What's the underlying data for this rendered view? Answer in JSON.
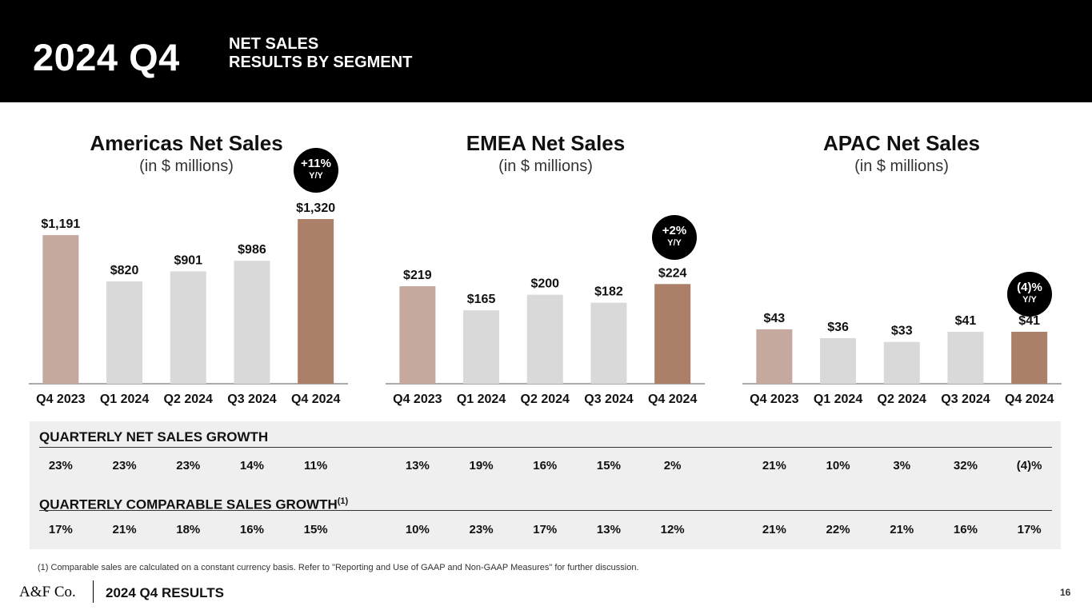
{
  "header": {
    "period": "2024 Q4",
    "subtitle_line1": "NET SALES",
    "subtitle_line2": "RESULTS BY SEGMENT"
  },
  "colors": {
    "q4_2023_bar": "#c5a89e",
    "mid_bar": "#d9d9d9",
    "q4_2024_bar": "#ab7f68",
    "header_bg": "#000000",
    "table_bg": "#efefef"
  },
  "chart_data": [
    {
      "type": "bar",
      "title": "Americas Net Sales",
      "subtitle": "(in $ millions)",
      "categories": [
        "Q4 2023",
        "Q1 2024",
        "Q2 2024",
        "Q3 2024",
        "Q4 2024"
      ],
      "values": [
        1191,
        820,
        901,
        986,
        1320
      ],
      "value_labels": [
        "$1,191",
        "$820",
        "$901",
        "$986",
        "$1,320"
      ],
      "ylim": [
        0,
        1320
      ],
      "badge": {
        "value": "+11%",
        "label": "Y/Y"
      }
    },
    {
      "type": "bar",
      "title": "EMEA Net Sales",
      "subtitle": "(in $ millions)",
      "categories": [
        "Q4 2023",
        "Q1 2024",
        "Q2 2024",
        "Q3 2024",
        "Q4 2024"
      ],
      "values": [
        219,
        165,
        200,
        182,
        224
      ],
      "value_labels": [
        "$219",
        "$165",
        "$200",
        "$182",
        "$224"
      ],
      "ylim": [
        0,
        370
      ],
      "badge": {
        "value": "+2%",
        "label": "Y/Y"
      }
    },
    {
      "type": "bar",
      "title": "APAC Net Sales",
      "subtitle": "(in $ millions)",
      "categories": [
        "Q4 2023",
        "Q1 2024",
        "Q2 2024",
        "Q3 2024",
        "Q4 2024"
      ],
      "values": [
        43,
        36,
        33,
        41,
        41
      ],
      "value_labels": [
        "$43",
        "$36",
        "$33",
        "$41",
        "$41"
      ],
      "ylim": [
        0,
        130
      ],
      "badge": {
        "value": "(4)%",
        "label": "Y/Y"
      }
    }
  ],
  "table": {
    "net_sales_growth_label": "QUARTERLY NET SALES GROWTH",
    "net_sales_growth": [
      [
        "23%",
        "23%",
        "23%",
        "14%",
        "11%"
      ],
      [
        "13%",
        "19%",
        "16%",
        "15%",
        "2%"
      ],
      [
        "21%",
        "10%",
        "3%",
        "32%",
        "(4)%"
      ]
    ],
    "comparable_sales_growth_label": "QUARTERLY COMPARABLE SALES GROWTH",
    "comparable_footnote_marker": "(1)",
    "comparable_sales_growth": [
      [
        "17%",
        "21%",
        "18%",
        "16%",
        "15%"
      ],
      [
        "10%",
        "23%",
        "17%",
        "13%",
        "12%"
      ],
      [
        "21%",
        "22%",
        "21%",
        "16%",
        "17%"
      ]
    ]
  },
  "footnote": "(1) Comparable sales are calculated on a constant currency basis. Refer to \"Reporting and Use of GAAP and Non-GAAP Measures\" for further discussion.",
  "footer": {
    "logo": "A&F Co.",
    "title": "2024 Q4 RESULTS",
    "page_number": "16"
  }
}
